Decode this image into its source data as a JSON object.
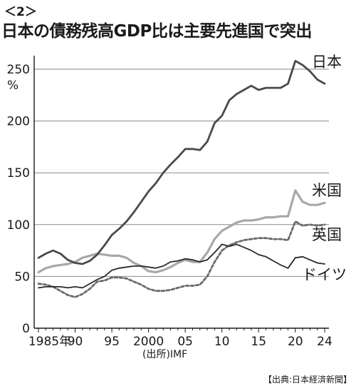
{
  "header": {
    "tag": "＜2＞",
    "title": "日本の債務残高GDP比は主要先進国で突出"
  },
  "footer": {
    "source": "(出所)IMF",
    "credit": "【出典:日本経済新聞】"
  },
  "chart_data": {
    "type": "line",
    "title": "日本の債務残高GDP比は主要先進国で突出",
    "ylabel": "%",
    "xlim": [
      1985,
      2024
    ],
    "ylim": [
      0,
      260
    ],
    "yticks": [
      0,
      50,
      100,
      150,
      200,
      250
    ],
    "xtick_labels": [
      "1985年",
      "90",
      "95",
      "2000",
      "05",
      "10",
      "15",
      "20",
      "24"
    ],
    "xtick_values": [
      1985,
      1990,
      1995,
      2000,
      2005,
      2010,
      2015,
      2020,
      2024
    ],
    "grid": "horizontal",
    "legend": "inline labels at right end",
    "colors": {
      "japan": "#4a4a4a",
      "us": "#a8a8a8",
      "uk": "#6a6a6a",
      "germany": "#2a2a2a"
    },
    "series": [
      {
        "name": "日本",
        "style": "solid",
        "x": [
          1985,
          1986,
          1987,
          1988,
          1989,
          1990,
          1991,
          1992,
          1993,
          1994,
          1995,
          1996,
          1997,
          1998,
          1999,
          2000,
          2001,
          2002,
          2003,
          2004,
          2005,
          2006,
          2007,
          2008,
          2009,
          2010,
          2011,
          2012,
          2013,
          2014,
          2015,
          2016,
          2017,
          2018,
          2019,
          2020,
          2021,
          2022,
          2023,
          2024
        ],
        "y": [
          68,
          72,
          75,
          72,
          66,
          63,
          62,
          65,
          71,
          80,
          90,
          96,
          103,
          112,
          122,
          132,
          140,
          150,
          158,
          165,
          173,
          173,
          172,
          180,
          198,
          205,
          220,
          226,
          230,
          234,
          230,
          232,
          232,
          232,
          236,
          258,
          254,
          248,
          240,
          236
        ]
      },
      {
        "name": "米国",
        "style": "solid-light",
        "x": [
          1985,
          1986,
          1987,
          1988,
          1989,
          1990,
          1991,
          1992,
          1993,
          1994,
          1995,
          1996,
          1997,
          1998,
          1999,
          2000,
          2001,
          2002,
          2003,
          2004,
          2005,
          2006,
          2007,
          2008,
          2009,
          2010,
          2011,
          2012,
          2013,
          2014,
          2015,
          2016,
          2017,
          2018,
          2019,
          2020,
          2021,
          2022,
          2023,
          2024
        ],
        "y": [
          54,
          58,
          60,
          61,
          62,
          64,
          68,
          70,
          72,
          71,
          70,
          70,
          68,
          63,
          60,
          55,
          54,
          56,
          59,
          63,
          66,
          64,
          64,
          73,
          86,
          94,
          98,
          102,
          104,
          104,
          105,
          107,
          107,
          108,
          108,
          133,
          122,
          119,
          119,
          121
        ]
      },
      {
        "name": "英国",
        "style": "dashed",
        "x": [
          1985,
          1986,
          1987,
          1988,
          1989,
          1990,
          1991,
          1992,
          1993,
          1994,
          1995,
          1996,
          1997,
          1998,
          1999,
          2000,
          2001,
          2002,
          2003,
          2004,
          2005,
          2006,
          2007,
          2008,
          2009,
          2010,
          2011,
          2012,
          2013,
          2014,
          2015,
          2016,
          2017,
          2018,
          2019,
          2020,
          2021,
          2022,
          2023,
          2024
        ],
        "y": [
          43,
          42,
          40,
          36,
          32,
          30,
          33,
          38,
          45,
          46,
          49,
          49,
          48,
          45,
          42,
          38,
          36,
          36,
          37,
          39,
          41,
          41,
          42,
          50,
          64,
          75,
          80,
          83,
          85,
          86,
          87,
          87,
          86,
          86,
          85,
          103,
          99,
          100,
          99,
          100
        ]
      },
      {
        "name": "ドイツ",
        "style": "solid",
        "x": [
          1985,
          1986,
          1987,
          1988,
          1989,
          1990,
          1991,
          1992,
          1993,
          1994,
          1995,
          1996,
          1997,
          1998,
          1999,
          2000,
          2001,
          2002,
          2003,
          2004,
          2005,
          2006,
          2007,
          2008,
          2009,
          2010,
          2011,
          2012,
          2013,
          2014,
          2015,
          2016,
          2017,
          2018,
          2019,
          2020,
          2021,
          2022,
          2023,
          2024
        ],
        "y": [
          39,
          40,
          40,
          40,
          39,
          40,
          39,
          43,
          47,
          50,
          56,
          58,
          59,
          60,
          60,
          59,
          58,
          60,
          64,
          65,
          67,
          66,
          64,
          66,
          73,
          81,
          79,
          81,
          78,
          75,
          71,
          69,
          65,
          61,
          58,
          68,
          69,
          66,
          63,
          62
        ]
      }
    ]
  }
}
